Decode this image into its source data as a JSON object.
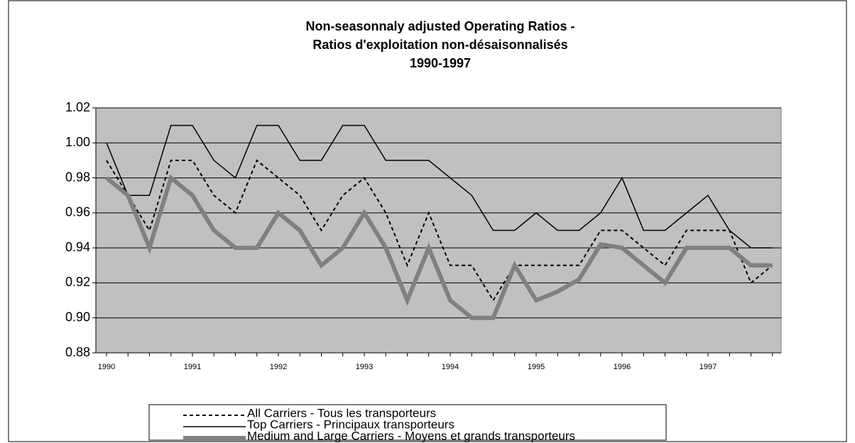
{
  "chart_data": {
    "type": "line",
    "title": [
      "Non-seasonnaly adjusted Operating Ratios -",
      "Ratios d'exploitation non-désaisonnalisés",
      "1990-1997"
    ],
    "categories": [
      "1990",
      null,
      null,
      null,
      "1991",
      null,
      null,
      null,
      "1992",
      null,
      null,
      null,
      "1993",
      null,
      null,
      null,
      "1994",
      null,
      null,
      null,
      "1995",
      null,
      null,
      null,
      "1996",
      null,
      null,
      null,
      "1997",
      null,
      null,
      null
    ],
    "series": [
      {
        "name": "All Carriers - Tous les transporteurs",
        "color": "#000000",
        "style": "dashed",
        "values": [
          0.99,
          0.97,
          0.95,
          0.99,
          0.99,
          0.97,
          0.96,
          0.99,
          0.98,
          0.97,
          0.95,
          0.97,
          0.98,
          0.96,
          0.93,
          0.96,
          0.93,
          0.93,
          0.91,
          0.93,
          0.93,
          0.93,
          0.93,
          0.95,
          0.95,
          0.94,
          0.93,
          0.95,
          0.95,
          0.95,
          0.92,
          0.93
        ]
      },
      {
        "name": " Top Carriers - Principaux transporteurs",
        "color": "#000000",
        "style": "solid",
        "values": [
          1.0,
          0.97,
          0.97,
          1.01,
          1.01,
          0.99,
          0.98,
          1.01,
          1.01,
          0.99,
          0.99,
          1.01,
          1.01,
          0.99,
          0.99,
          0.99,
          0.98,
          0.97,
          0.95,
          0.95,
          0.96,
          0.95,
          0.95,
          0.96,
          0.98,
          0.95,
          0.95,
          0.96,
          0.97,
          0.95,
          0.94,
          0.94
        ]
      },
      {
        "name": "Medium and Large Carriers - Moyens et grands transporteurs",
        "color": "#808080",
        "style": "thick",
        "values": [
          0.98,
          0.97,
          0.94,
          0.98,
          0.97,
          0.95,
          0.94,
          0.94,
          0.96,
          0.95,
          0.93,
          0.94,
          0.96,
          0.94,
          0.91,
          0.94,
          0.91,
          0.9,
          0.9,
          0.93,
          0.91,
          0.915,
          0.922,
          0.942,
          0.94,
          0.93,
          0.92,
          0.94,
          0.94,
          0.94,
          0.93,
          0.93
        ]
      }
    ],
    "ylim": [
      0.88,
      1.02
    ],
    "yticks": [
      {
        "value": 0.88,
        "label": "0.88"
      },
      {
        "value": 0.9,
        "label": "0.90"
      },
      {
        "value": 0.92,
        "label": "0.92"
      },
      {
        "value": 0.94,
        "label": "0.94"
      },
      {
        "value": 0.96,
        "label": "0.96"
      },
      {
        "value": 0.98,
        "label": "0.98"
      },
      {
        "value": 1.0,
        "label": "1.00"
      },
      {
        "value": 1.02,
        "label": "1.02"
      }
    ],
    "grid": true,
    "background": "#c0c0c0",
    "legend": "bottom"
  }
}
